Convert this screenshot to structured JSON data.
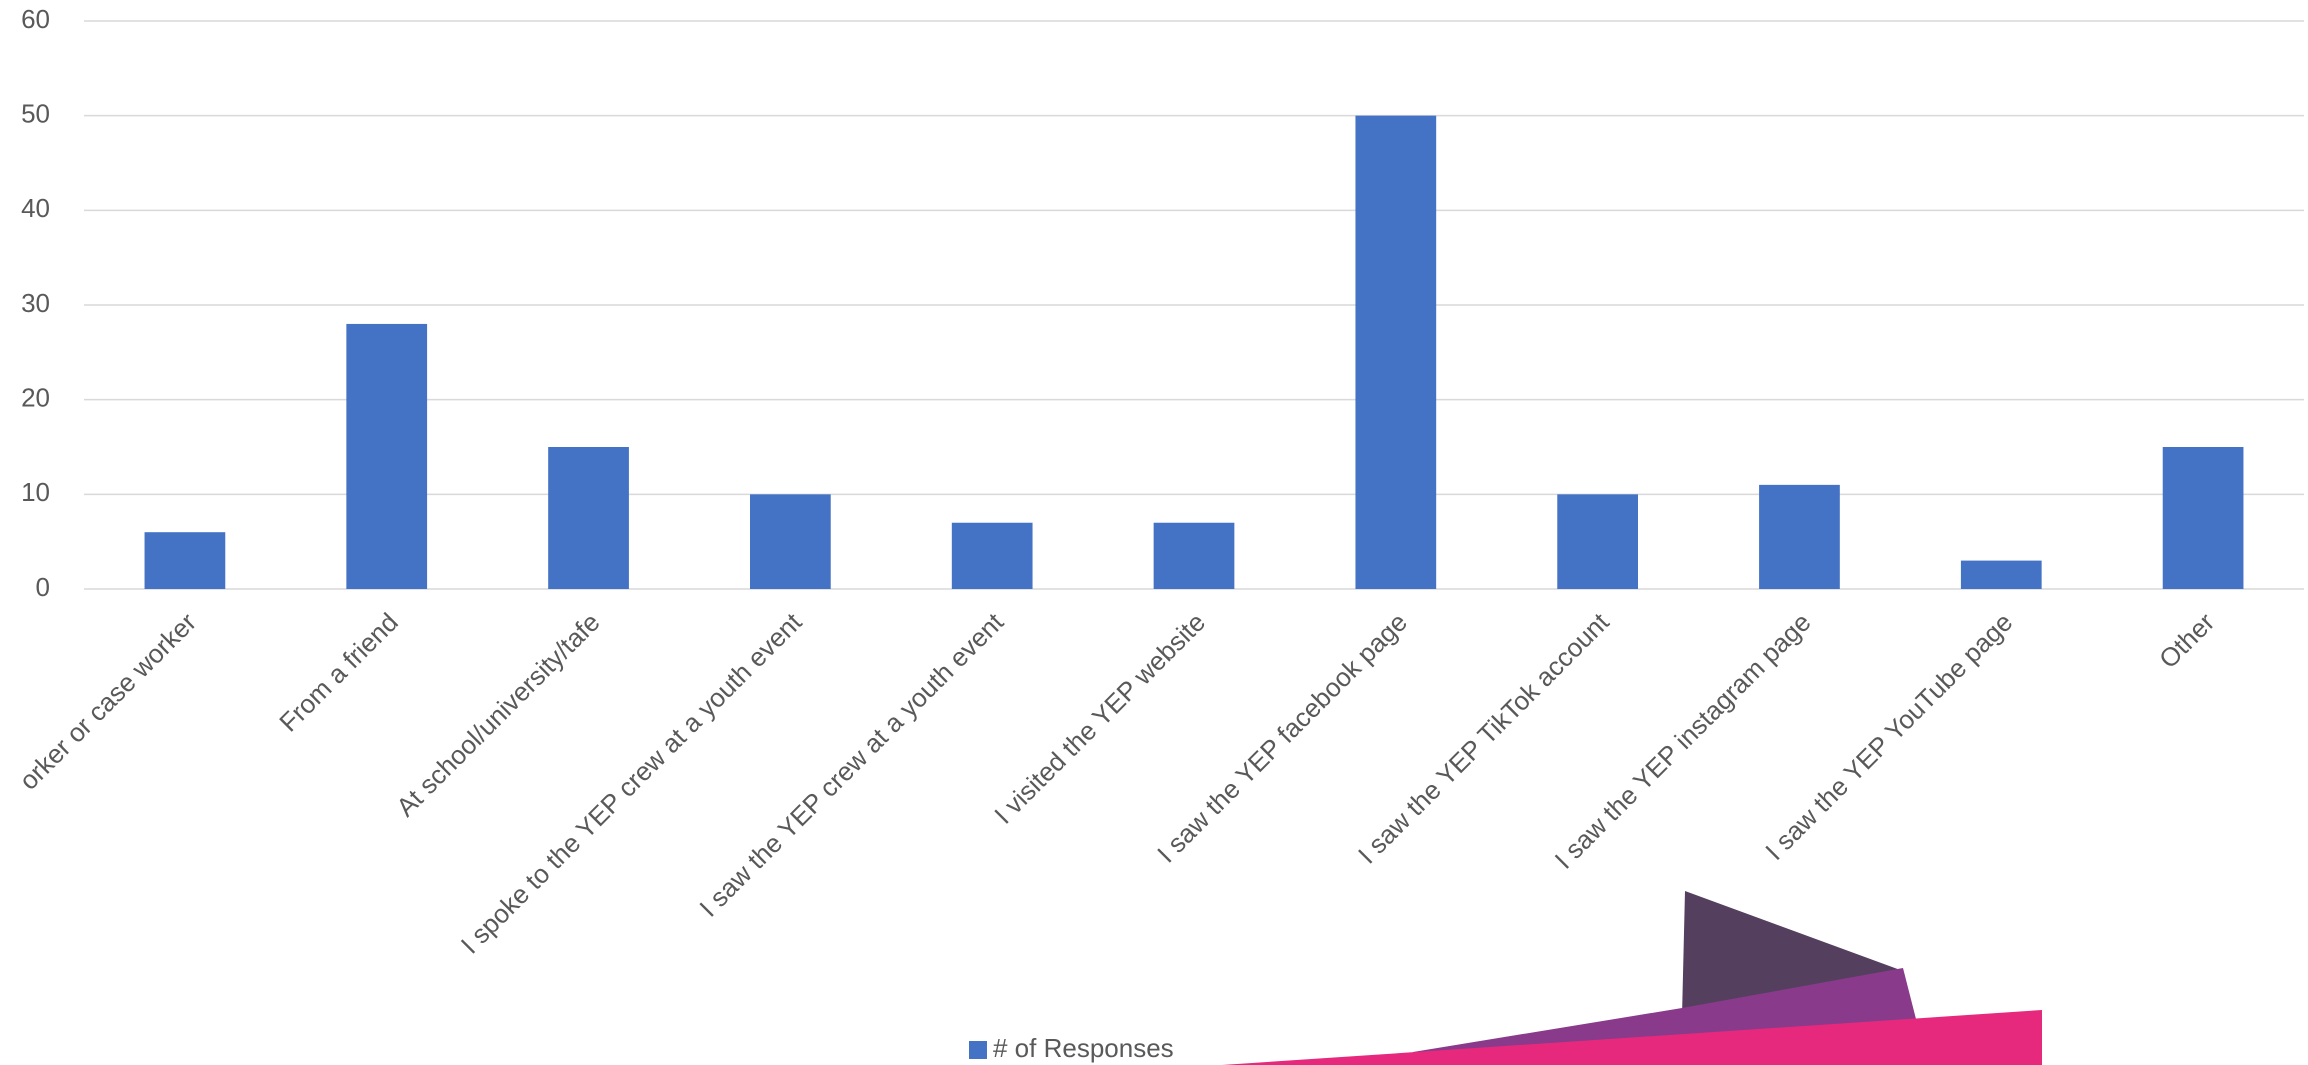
{
  "chart_data": {
    "type": "bar",
    "categories": [
      "orker or case worker",
      "From a friend",
      "At school/university/tafe",
      "I spoke to the YEP crew at a youth event",
      "I saw the YEP crew at a youth event",
      "I visited the YEP website",
      "I saw the YEP facebook page",
      "I saw the YEP TikTok account",
      "I saw the YEP instagram page",
      "I saw the YEP YouTube page",
      "Other"
    ],
    "series": [
      {
        "name": "# of Responses",
        "color": "#4472c4",
        "values": [
          6,
          28,
          15,
          10,
          7,
          7,
          50,
          10,
          11,
          3,
          15
        ]
      }
    ],
    "ylim": [
      0,
      60
    ],
    "yticks": [
      0,
      10,
      20,
      30,
      40,
      50,
      60
    ],
    "grid": true,
    "legend": "bottom"
  }
}
